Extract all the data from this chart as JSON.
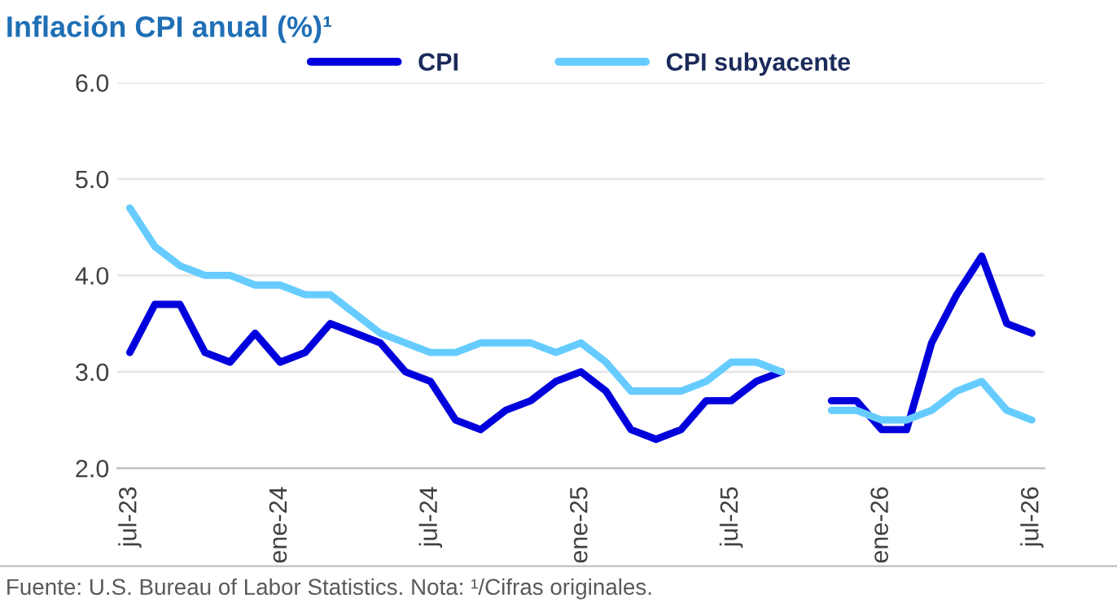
{
  "chart_data": {
    "type": "line",
    "title": "Inflación CPI anual (%)¹",
    "categories": [
      "jul-23",
      null,
      null,
      null,
      null,
      null,
      "ene-24",
      null,
      null,
      null,
      null,
      null,
      "jul-24",
      null,
      null,
      null,
      null,
      null,
      "ene-25",
      null,
      null,
      null,
      null,
      null,
      "jul-25",
      null,
      null,
      null,
      null,
      null,
      "ene-26",
      null,
      null,
      null,
      null,
      null,
      "jul-26"
    ],
    "series": [
      {
        "name": "CPI",
        "color": "#0000dd",
        "values": [
          3.2,
          3.7,
          3.7,
          3.2,
          3.1,
          3.4,
          3.1,
          3.2,
          3.5,
          3.4,
          3.3,
          3.0,
          2.9,
          2.5,
          2.4,
          2.6,
          2.7,
          2.9,
          3.0,
          2.8,
          2.4,
          2.3,
          2.4,
          2.7,
          2.7,
          2.9,
          3.0,
          null,
          2.7,
          2.7,
          2.4,
          2.4,
          3.3,
          3.8,
          4.2,
          3.5,
          3.4
        ]
      },
      {
        "name": "CPI subyacente",
        "color": "#66ccff",
        "values": [
          4.7,
          4.3,
          4.1,
          4.0,
          4.0,
          3.9,
          3.9,
          3.8,
          3.8,
          3.6,
          3.4,
          3.3,
          3.2,
          3.2,
          3.3,
          3.3,
          3.3,
          3.2,
          3.3,
          3.1,
          2.8,
          2.8,
          2.8,
          2.9,
          3.1,
          3.1,
          3.0,
          null,
          2.6,
          2.6,
          2.5,
          2.5,
          2.6,
          2.8,
          2.9,
          2.6,
          2.5
        ]
      }
    ],
    "ylim": [
      2,
      6
    ],
    "yticks": [
      {
        "value": 2,
        "label": "2.0"
      },
      {
        "value": 3,
        "label": "3.0"
      },
      {
        "value": 4,
        "label": "4.0"
      },
      {
        "value": 5,
        "label": "5.0"
      },
      {
        "value": 6,
        "label": "6.0"
      }
    ],
    "grid": "y",
    "legend": "top",
    "marker": "none",
    "line_style": "solid",
    "annotations": [
      "Fuente: U.S. Bureau of Labor Statistics. Nota: ¹/Cifras originales."
    ]
  }
}
